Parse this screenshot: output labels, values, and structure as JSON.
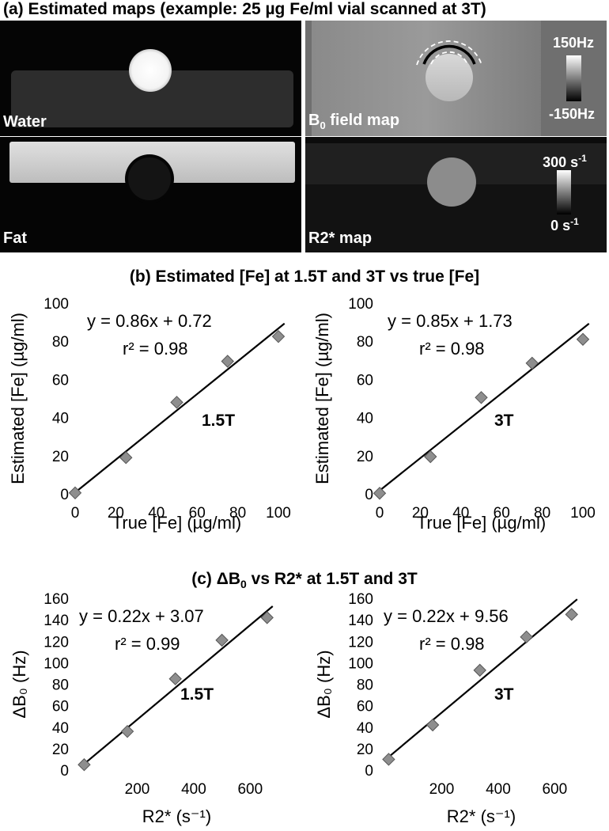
{
  "figure": {
    "title_a": "(a) Estimated maps (example: 25 µg Fe/ml vial scanned at 3T)",
    "title_b": "(b) Estimated [Fe] at 1.5T and 3T vs true [Fe]",
    "title_c": "(c) ΔB",
    "title_c_sub": "0",
    "title_c_rest": " vs R2* at 1.5T and 3T"
  },
  "maps": {
    "water_label": "Water",
    "b0_label_main": "B",
    "b0_label_sub": "0",
    "b0_label_rest": " field map",
    "b0_cbar_max": "150Hz",
    "b0_cbar_min": "-150Hz",
    "fat_label": "Fat",
    "r2_label": "R2* map",
    "r2_cbar_max_main": "300 s",
    "r2_cbar_max_sup": "-1",
    "r2_cbar_min_main": "0 s",
    "r2_cbar_min_sup": "-1"
  },
  "chart_data": [
    {
      "type": "scatter",
      "panel": "b-1.5T",
      "annotation": "1.5T",
      "equation": "y = 0.86x + 0.72",
      "r2": "r² = 0.98",
      "xlabel": "True [Fe] (µg/ml)",
      "ylabel": "Estimated [Fe] (µg/ml)",
      "xlim": [
        0,
        100
      ],
      "ylim": [
        0,
        100
      ],
      "xticks": [
        0,
        20,
        40,
        60,
        80,
        100
      ],
      "yticks": [
        0,
        20,
        40,
        60,
        80,
        100
      ],
      "x": [
        0,
        25,
        50,
        75,
        100
      ],
      "y": [
        0.5,
        19,
        48,
        69.5,
        82.5
      ],
      "fit": {
        "slope": 0.86,
        "intercept": 0.72
      },
      "xticklabels_on_side": false
    },
    {
      "type": "scatter",
      "panel": "b-3T",
      "annotation": "3T",
      "equation": "y = 0.85x + 1.73",
      "r2": "r² = 0.98",
      "xlabel": "True [Fe] (µg/ml)",
      "ylabel": "Estimated [Fe] (µg/ml)",
      "xlim": [
        0,
        100
      ],
      "ylim": [
        0,
        100
      ],
      "xticks": [
        0,
        20,
        40,
        60,
        80,
        100
      ],
      "yticks": [
        0,
        20,
        40,
        60,
        80,
        100
      ],
      "x": [
        0,
        25,
        50,
        75,
        100
      ],
      "y": [
        0.3,
        19.5,
        50.5,
        68.5,
        81
      ],
      "fit": {
        "slope": 0.85,
        "intercept": 1.73
      }
    },
    {
      "type": "scatter",
      "panel": "c-1.5T",
      "annotation": "1.5T",
      "equation": "y = 0.22x + 3.07",
      "r2": "r² = 0.99",
      "xlabel": "R2* (s⁻¹)",
      "ylabel": "ΔB₀ (Hz)",
      "xlim": [
        -20,
        700
      ],
      "ylim": [
        0,
        160
      ],
      "xticks": [
        200,
        400,
        600
      ],
      "yticks": [
        0,
        20,
        40,
        60,
        80,
        100,
        120,
        140,
        160
      ],
      "x": [
        12,
        165,
        335,
        500,
        660
      ],
      "y": [
        5,
        36,
        85,
        121,
        142
      ],
      "fit": {
        "slope": 0.22,
        "intercept": 3.07
      }
    },
    {
      "type": "scatter",
      "panel": "c-3T",
      "annotation": "3T",
      "equation": "y = 0.22x + 9.56",
      "r2": "r² = 0.98",
      "xlabel": "R2* (s⁻¹)",
      "ylabel": "ΔB₀ (Hz)",
      "xlim": [
        -20,
        700
      ],
      "ylim": [
        0,
        160
      ],
      "xticks": [
        200,
        400,
        600
      ],
      "yticks": [
        0,
        20,
        40,
        60,
        80,
        100,
        120,
        140,
        160
      ],
      "x": [
        12,
        168,
        335,
        500,
        660
      ],
      "y": [
        10,
        42,
        93,
        124,
        145
      ],
      "fit": {
        "slope": 0.22,
        "intercept": 9.56
      }
    }
  ]
}
